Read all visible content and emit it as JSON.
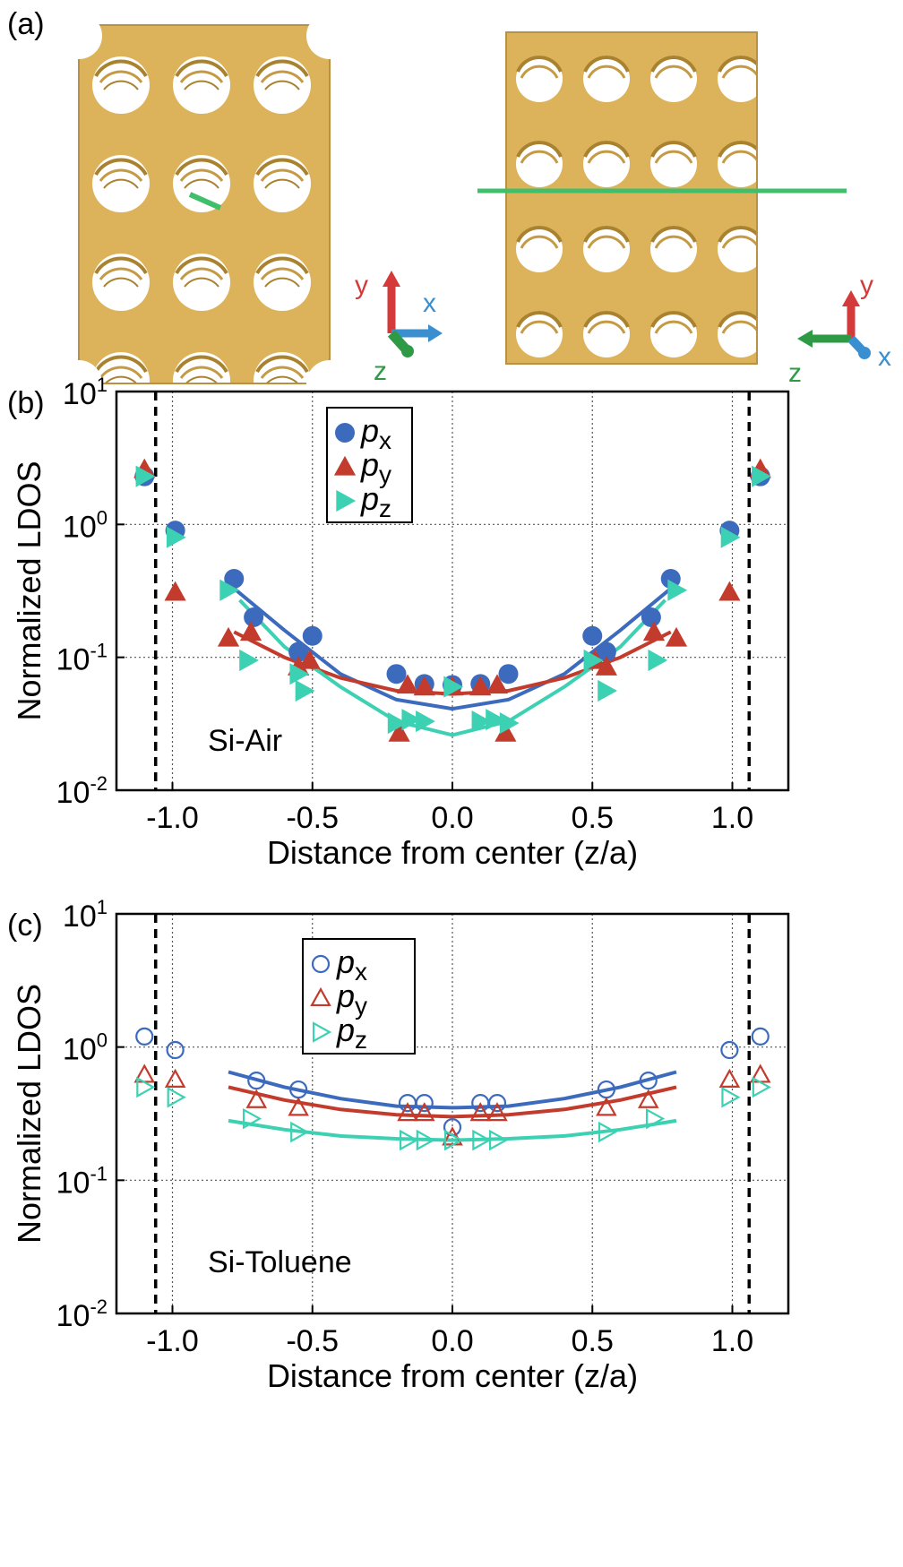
{
  "panel_a": {
    "label": "(a)",
    "left_axes": {
      "y": "y",
      "x": "x",
      "z": "z"
    },
    "right_axes": {
      "y": "y",
      "x": "x",
      "z": "z"
    },
    "colors": {
      "structure": "#dcb35a",
      "structure_dark": "#a9822f",
      "y_axis": "#d43a3a",
      "x_axis": "#3a8fd0",
      "z_axis": "#2e9a46",
      "dipole": "#3fbf6a"
    }
  },
  "chart_data": [
    {
      "type": "scatter",
      "panel_label": "(b)",
      "title": "",
      "annotation": "Si-Air",
      "xlabel": "Distance from center (z/a)",
      "ylabel": "Normalized LDOS",
      "yscale": "log",
      "xlim": [
        -1.2,
        1.2
      ],
      "ylim": [
        0.01,
        10
      ],
      "xticks": [
        "-1.0",
        "-0.5",
        "0.0",
        "0.5",
        "1.0"
      ],
      "xtick_values": [
        -1.0,
        -0.5,
        0.0,
        0.5,
        1.0
      ],
      "yticks": [
        {
          "base": "10",
          "exp": "1"
        },
        {
          "base": "10",
          "exp": "0"
        },
        {
          "base": "10",
          "exp": "-1"
        },
        {
          "base": "10",
          "exp": "-2"
        }
      ],
      "ytick_values": [
        10,
        1,
        0.1,
        0.01
      ],
      "grid": true,
      "boundaries": [
        -1.06,
        1.06
      ],
      "legend": {
        "position": "top-center",
        "entries": [
          {
            "base": "p",
            "sub": "x"
          },
          {
            "base": "p",
            "sub": "y"
          },
          {
            "base": "p",
            "sub": "z"
          }
        ]
      },
      "series": [
        {
          "name": "px",
          "marker": "circle",
          "filled": true,
          "color": "#3c6bbd",
          "x": [
            -1.1,
            -0.99,
            -0.78,
            -0.71,
            -0.55,
            -0.5,
            -0.2,
            -0.1,
            0.0,
            0.1,
            0.2,
            0.5,
            0.55,
            0.71,
            0.78,
            0.99,
            1.1
          ],
          "y": [
            2.3,
            0.9,
            0.39,
            0.2,
            0.11,
            0.145,
            0.075,
            0.063,
            0.062,
            0.063,
            0.075,
            0.145,
            0.11,
            0.2,
            0.39,
            0.9,
            2.3
          ],
          "fit": {
            "x": [
              -0.78,
              -0.6,
              -0.4,
              -0.2,
              0.0,
              0.2,
              0.4,
              0.6,
              0.78
            ],
            "y": [
              0.33,
              0.16,
              0.075,
              0.048,
              0.041,
              0.048,
              0.075,
              0.16,
              0.33
            ]
          }
        },
        {
          "name": "py",
          "marker": "triangle-up",
          "filled": true,
          "color": "#c23b2c",
          "x": [
            -1.1,
            -0.99,
            -0.8,
            -0.72,
            -0.55,
            -0.51,
            -0.19,
            -0.16,
            -0.1,
            0.0,
            0.1,
            0.16,
            0.19,
            0.51,
            0.55,
            0.72,
            0.8,
            0.99,
            1.1
          ],
          "y": [
            2.6,
            0.31,
            0.14,
            0.155,
            0.085,
            0.095,
            0.027,
            0.062,
            0.06,
            0.06,
            0.06,
            0.062,
            0.027,
            0.095,
            0.085,
            0.155,
            0.14,
            0.31,
            2.6
          ],
          "fit": {
            "x": [
              -0.78,
              -0.6,
              -0.4,
              -0.2,
              0.0,
              0.2,
              0.4,
              0.6,
              0.78
            ],
            "y": [
              0.155,
              0.1,
              0.07,
              0.056,
              0.053,
              0.056,
              0.07,
              0.1,
              0.155
            ]
          }
        },
        {
          "name": "pz",
          "marker": "triangle-right",
          "filled": true,
          "color": "#3dd1b3",
          "x": [
            -1.1,
            -0.99,
            -0.8,
            -0.73,
            -0.55,
            -0.53,
            -0.2,
            -0.15,
            -0.1,
            0.0,
            0.1,
            0.15,
            0.2,
            0.5,
            0.55,
            0.73,
            0.8,
            0.99,
            1.1
          ],
          "y": [
            2.3,
            0.8,
            0.32,
            0.095,
            0.075,
            0.056,
            0.032,
            0.034,
            0.033,
            0.06,
            0.033,
            0.034,
            0.032,
            0.095,
            0.056,
            0.095,
            0.32,
            0.8,
            2.3
          ],
          "fit": {
            "x": [
              -0.76,
              -0.6,
              -0.4,
              -0.2,
              0.0,
              0.2,
              0.4,
              0.6,
              0.76
            ],
            "y": [
              0.27,
              0.12,
              0.06,
              0.033,
              0.026,
              0.033,
              0.06,
              0.12,
              0.27
            ]
          }
        }
      ]
    },
    {
      "type": "scatter",
      "panel_label": "(c)",
      "title": "",
      "annotation": "Si-Toluene",
      "xlabel": "Distance from center (z/a)",
      "ylabel": "Normalized LDOS",
      "yscale": "log",
      "xlim": [
        -1.2,
        1.2
      ],
      "ylim": [
        0.01,
        10
      ],
      "xticks": [
        "-1.0",
        "-0.5",
        "0.0",
        "0.5",
        "1.0"
      ],
      "xtick_values": [
        -1.0,
        -0.5,
        0.0,
        0.5,
        1.0
      ],
      "yticks": [
        {
          "base": "10",
          "exp": "1"
        },
        {
          "base": "10",
          "exp": "0"
        },
        {
          "base": "10",
          "exp": "-1"
        },
        {
          "base": "10",
          "exp": "-2"
        }
      ],
      "ytick_values": [
        10,
        1,
        0.1,
        0.01
      ],
      "grid": true,
      "boundaries": [
        -1.06,
        1.06
      ],
      "legend": {
        "position": "top-center",
        "entries": [
          {
            "base": "p",
            "sub": "x"
          },
          {
            "base": "p",
            "sub": "y"
          },
          {
            "base": "p",
            "sub": "z"
          }
        ]
      },
      "series": [
        {
          "name": "px",
          "marker": "circle",
          "filled": false,
          "color": "#3c6bbd",
          "x": [
            -1.1,
            -0.99,
            -0.7,
            -0.55,
            -0.16,
            -0.1,
            0.0,
            0.1,
            0.16,
            0.55,
            0.7,
            0.99,
            1.1
          ],
          "y": [
            1.2,
            0.95,
            0.56,
            0.48,
            0.38,
            0.38,
            0.25,
            0.38,
            0.38,
            0.48,
            0.56,
            0.95,
            1.2
          ],
          "fit": {
            "x": [
              -0.8,
              -0.6,
              -0.4,
              -0.2,
              0.0,
              0.2,
              0.4,
              0.6,
              0.8
            ],
            "y": [
              0.65,
              0.5,
              0.41,
              0.36,
              0.35,
              0.36,
              0.41,
              0.5,
              0.65
            ]
          }
        },
        {
          "name": "py",
          "marker": "triangle-up",
          "filled": false,
          "color": "#c23b2c",
          "x": [
            -1.1,
            -0.99,
            -0.7,
            -0.55,
            -0.16,
            -0.1,
            0.0,
            0.1,
            0.16,
            0.55,
            0.7,
            0.99,
            1.1
          ],
          "y": [
            0.62,
            0.57,
            0.4,
            0.35,
            0.32,
            0.32,
            0.21,
            0.32,
            0.32,
            0.35,
            0.4,
            0.57,
            0.62
          ],
          "fit": {
            "x": [
              -0.8,
              -0.6,
              -0.4,
              -0.2,
              0.0,
              0.2,
              0.4,
              0.6,
              0.8
            ],
            "y": [
              0.5,
              0.4,
              0.34,
              0.31,
              0.3,
              0.31,
              0.34,
              0.4,
              0.5
            ]
          }
        },
        {
          "name": "pz",
          "marker": "triangle-right",
          "filled": false,
          "color": "#3dd1b3",
          "x": [
            -1.1,
            -0.99,
            -0.72,
            -0.55,
            -0.16,
            -0.1,
            0.0,
            0.1,
            0.16,
            0.55,
            0.72,
            0.99,
            1.1
          ],
          "y": [
            0.5,
            0.42,
            0.29,
            0.23,
            0.2,
            0.2,
            0.2,
            0.2,
            0.2,
            0.23,
            0.29,
            0.42,
            0.5
          ],
          "fit": {
            "x": [
              -0.8,
              -0.6,
              -0.4,
              -0.2,
              0.0,
              0.2,
              0.4,
              0.6,
              0.8
            ],
            "y": [
              0.28,
              0.24,
              0.215,
              0.205,
              0.2,
              0.205,
              0.215,
              0.24,
              0.28
            ]
          }
        }
      ]
    }
  ]
}
